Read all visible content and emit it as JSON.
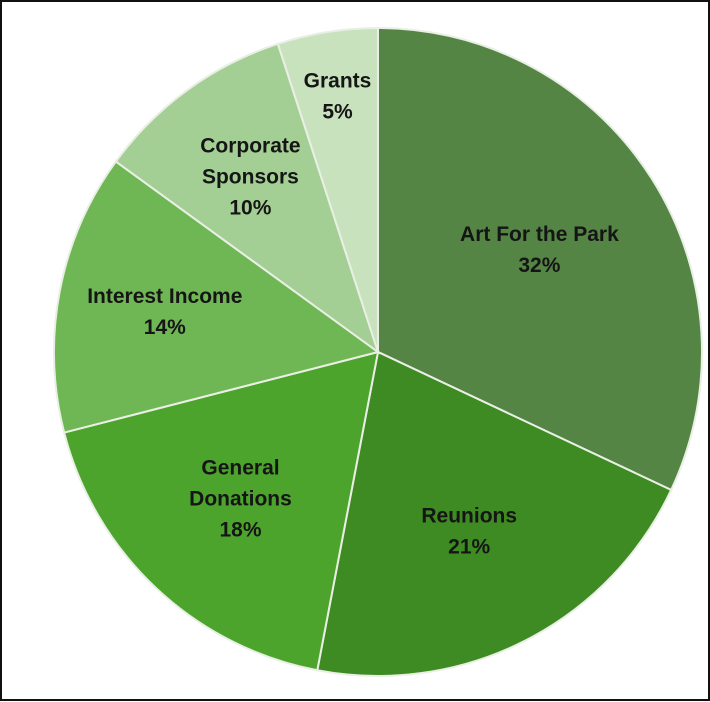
{
  "chart_data": {
    "type": "pie",
    "title": "",
    "start": "12 o'clock, clockwise",
    "slices": [
      {
        "name": "Art For the Park",
        "label_lines": [
          "Art For the Park",
          "32%"
        ],
        "value": 32,
        "color": "#548544"
      },
      {
        "name": "Reunions",
        "label_lines": [
          "Reunions",
          "21%"
        ],
        "value": 21,
        "color": "#3e8a23"
      },
      {
        "name": "General Donations",
        "label_lines": [
          "General",
          "Donations",
          "18%"
        ],
        "value": 18,
        "color": "#4da42d"
      },
      {
        "name": "Interest Income",
        "label_lines": [
          "Interest Income",
          "14%"
        ],
        "value": 14,
        "color": "#6fb655"
      },
      {
        "name": "Corporate Sponsors",
        "label_lines": [
          "Corporate",
          "Sponsors",
          "10%"
        ],
        "value": 10,
        "color": "#a4cf94"
      },
      {
        "name": "Grants",
        "label_lines": [
          "Grants",
          "5%"
        ],
        "value": 5,
        "color": "#c9e2be"
      }
    ]
  }
}
